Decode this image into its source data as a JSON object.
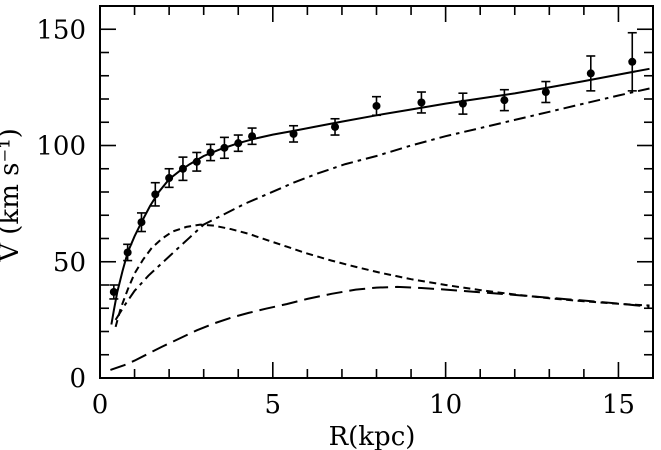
{
  "chart_data": {
    "type": "line",
    "title": "",
    "xlabel": "R(kpc)",
    "ylabel": "V (km s⁻¹)",
    "xlim": [
      0,
      16
    ],
    "ylim": [
      0,
      160
    ],
    "x_ticks": {
      "major": [
        0,
        5,
        10,
        15
      ],
      "minor_step": 1
    },
    "y_ticks": {
      "major": [
        0,
        50,
        100,
        150
      ],
      "minor_step": 10
    },
    "grid": false,
    "legend": "none",
    "ink_color": "#000000",
    "background_color": "#ffffff",
    "series": [
      {
        "name": "observed-data-points",
        "role": "data",
        "marker": "filled-circle",
        "line_style": "none",
        "points_format": [
          "R_kpc",
          "V_km_s",
          "error_km_s"
        ],
        "points": [
          [
            0.4,
            37,
            3
          ],
          [
            0.8,
            54,
            3.5
          ],
          [
            1.2,
            67,
            4
          ],
          [
            1.6,
            79,
            5
          ],
          [
            2.0,
            86,
            4
          ],
          [
            2.4,
            90,
            5
          ],
          [
            2.8,
            93,
            4
          ],
          [
            3.2,
            97,
            3.5
          ],
          [
            3.6,
            99,
            4.5
          ],
          [
            4.0,
            101,
            3.5
          ],
          [
            4.4,
            104,
            3.5
          ],
          [
            5.6,
            105,
            3.5
          ],
          [
            6.8,
            108,
            3.5
          ],
          [
            8.0,
            117,
            4
          ],
          [
            9.3,
            118.5,
            4.5
          ],
          [
            10.5,
            118,
            4.5
          ],
          [
            11.7,
            119.5,
            4.5
          ],
          [
            12.9,
            123,
            4.5
          ],
          [
            14.2,
            131,
            7.5
          ],
          [
            15.4,
            136,
            12.5
          ]
        ]
      },
      {
        "name": "total-fit-solid-curve",
        "role": "model",
        "marker": "none",
        "line_style": "solid",
        "points": [
          [
            0.33,
            23
          ],
          [
            0.4,
            29
          ],
          [
            0.5,
            37
          ],
          [
            0.65,
            46
          ],
          [
            0.8,
            54
          ],
          [
            1.0,
            61
          ],
          [
            1.2,
            67
          ],
          [
            1.45,
            74
          ],
          [
            1.7,
            80
          ],
          [
            2.0,
            85.5
          ],
          [
            2.3,
            89
          ],
          [
            2.6,
            92
          ],
          [
            3.0,
            95.5
          ],
          [
            3.5,
            98.5
          ],
          [
            4.0,
            101
          ],
          [
            4.5,
            103
          ],
          [
            5.0,
            104.7
          ],
          [
            5.6,
            106.3
          ],
          [
            6.2,
            108
          ],
          [
            7.0,
            110.3
          ],
          [
            8.0,
            113
          ],
          [
            9.0,
            115.5
          ],
          [
            10.0,
            118
          ],
          [
            11.0,
            120.2
          ],
          [
            12.0,
            122.4
          ],
          [
            13.0,
            125
          ],
          [
            14.0,
            127.7
          ],
          [
            15.0,
            130.5
          ],
          [
            15.9,
            133
          ]
        ]
      },
      {
        "name": "dot-dashed-curve",
        "role": "model",
        "marker": "none",
        "line_style": "dash-dot",
        "points": [
          [
            0.45,
            25
          ],
          [
            0.7,
            31
          ],
          [
            1.0,
            37.5
          ],
          [
            1.4,
            44
          ],
          [
            1.8,
            49.5
          ],
          [
            2.2,
            55
          ],
          [
            2.6,
            60.5
          ],
          [
            3.0,
            66
          ],
          [
            3.6,
            70.5
          ],
          [
            4.2,
            75
          ],
          [
            4.9,
            79.5
          ],
          [
            5.6,
            84
          ],
          [
            6.3,
            88
          ],
          [
            7.1,
            92
          ],
          [
            8.0,
            95.5
          ],
          [
            9.0,
            100
          ],
          [
            10.0,
            104
          ],
          [
            11.0,
            107.5
          ],
          [
            12.0,
            111
          ],
          [
            13.0,
            114.5
          ],
          [
            14.0,
            118
          ],
          [
            15.0,
            121.5
          ],
          [
            15.9,
            124.5
          ]
        ]
      },
      {
        "name": "short-dashed-curve",
        "role": "model",
        "marker": "none",
        "line_style": "short-dash",
        "points": [
          [
            0.45,
            22
          ],
          [
            0.6,
            30
          ],
          [
            0.8,
            38
          ],
          [
            1.0,
            45
          ],
          [
            1.25,
            51
          ],
          [
            1.5,
            56
          ],
          [
            1.8,
            60
          ],
          [
            2.1,
            63
          ],
          [
            2.5,
            65
          ],
          [
            2.9,
            66
          ],
          [
            3.3,
            65.5
          ],
          [
            3.8,
            64
          ],
          [
            4.3,
            62
          ],
          [
            4.8,
            59.5
          ],
          [
            5.4,
            56.5
          ],
          [
            6.0,
            53.5
          ],
          [
            6.7,
            50.5
          ],
          [
            7.4,
            47.8
          ],
          [
            8.1,
            45.3
          ],
          [
            9.0,
            42.5
          ],
          [
            10.0,
            40
          ],
          [
            11.0,
            37.8
          ],
          [
            12.0,
            35.9
          ],
          [
            13.0,
            34.3
          ],
          [
            14.0,
            33
          ],
          [
            15.0,
            31.9
          ],
          [
            15.9,
            31.2
          ]
        ]
      },
      {
        "name": "long-dashed-curve",
        "role": "model",
        "marker": "none",
        "line_style": "long-dash",
        "points": [
          [
            0.3,
            3.5
          ],
          [
            0.7,
            5.5
          ],
          [
            1.0,
            7.5
          ],
          [
            1.4,
            10.5
          ],
          [
            1.8,
            13.5
          ],
          [
            2.3,
            17
          ],
          [
            2.8,
            20.5
          ],
          [
            3.3,
            23.5
          ],
          [
            3.8,
            26
          ],
          [
            4.3,
            28
          ],
          [
            4.8,
            29.8
          ],
          [
            5.4,
            31.8
          ],
          [
            6.0,
            34
          ],
          [
            6.7,
            36.2
          ],
          [
            7.4,
            38
          ],
          [
            8.0,
            38.9
          ],
          [
            8.6,
            39.2
          ],
          [
            9.3,
            38.7
          ],
          [
            10.0,
            38
          ],
          [
            10.8,
            37.1
          ],
          [
            11.7,
            36.1
          ],
          [
            12.6,
            35
          ],
          [
            13.5,
            33.9
          ],
          [
            14.4,
            32.8
          ],
          [
            15.2,
            31.7
          ],
          [
            15.9,
            30.7
          ]
        ]
      }
    ]
  }
}
